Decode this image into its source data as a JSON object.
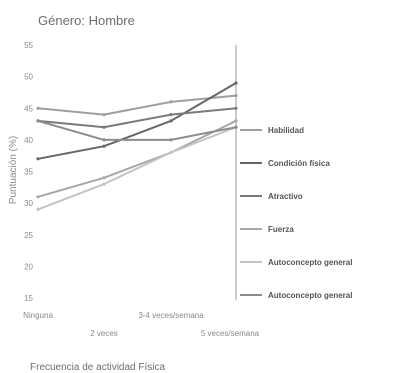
{
  "chart_data": {
    "type": "line",
    "title": "Género: Hombre",
    "xlabel": "Frecuencia de actividad Física",
    "ylabel": "Puntuación (%)",
    "categories": [
      "Ninguna",
      "2 veces",
      "3-4 veces/semana",
      "5 veces/semana"
    ],
    "ylim": [
      15,
      55
    ],
    "yticks": [
      "55",
      "50",
      "45",
      "40",
      "35",
      "30",
      "25",
      "20",
      "15"
    ],
    "grid": false,
    "legend_position": "right",
    "series": [
      {
        "name": "Habilidad",
        "values": [
          45,
          44,
          46,
          47
        ],
        "color": "#9e9e9e"
      },
      {
        "name": "Condición física",
        "values": [
          37,
          39,
          43,
          49
        ],
        "color": "#666666"
      },
      {
        "name": "Atractivo",
        "values": [
          43,
          42,
          44,
          45
        ],
        "color": "#7a7a7a"
      },
      {
        "name": "Fuerza",
        "values": [
          31,
          34,
          38,
          43
        ],
        "color": "#a8a8a8"
      },
      {
        "name": "Autoconcepto general",
        "values": [
          29,
          33,
          38,
          42
        ],
        "color": "#c4c4c4"
      },
      {
        "name": "Autoconcepto general",
        "values": [
          43,
          40,
          40,
          42
        ],
        "color": "#8c8c8c"
      }
    ]
  }
}
